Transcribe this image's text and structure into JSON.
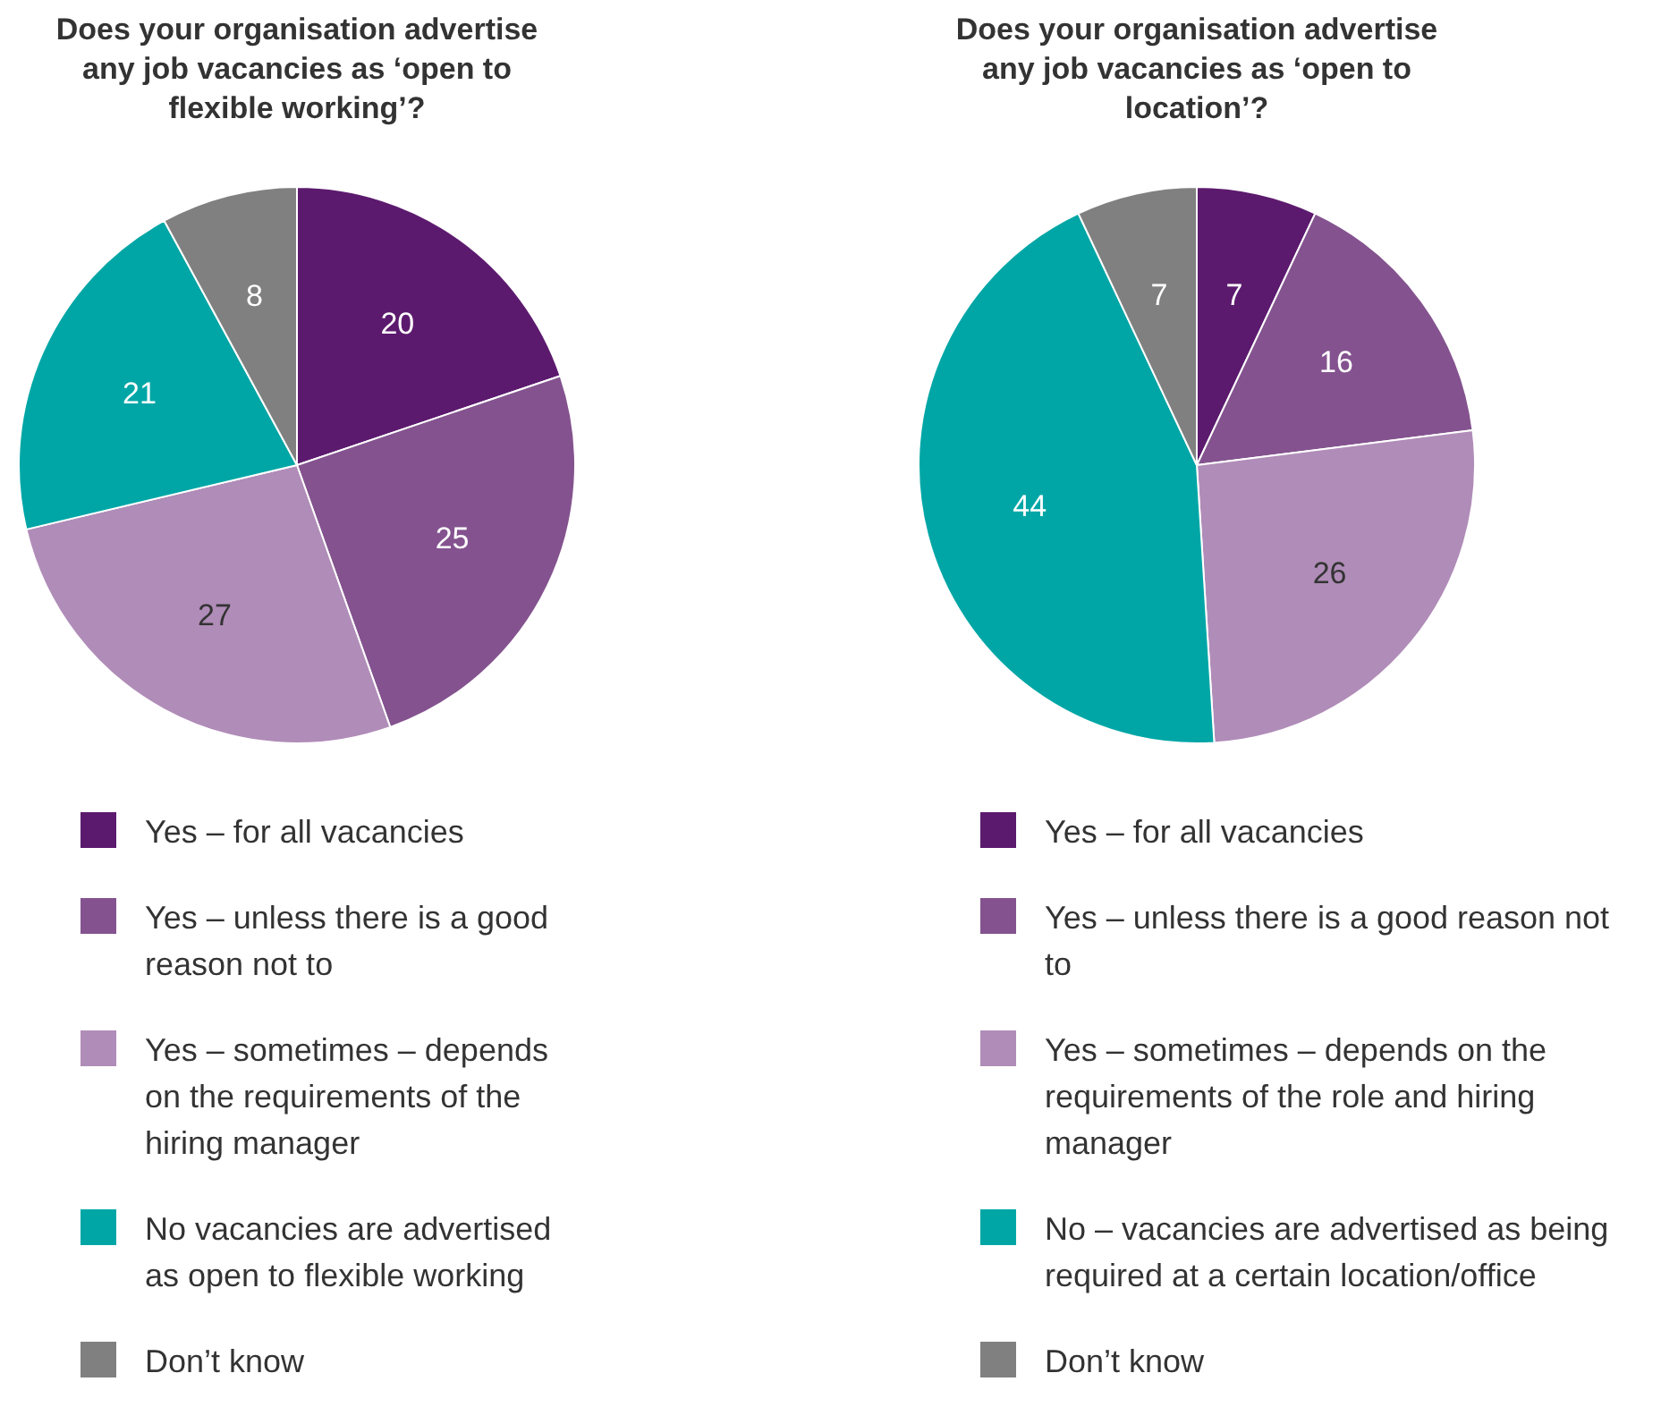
{
  "chart_data": [
    {
      "type": "pie",
      "title": "Does your organisation advertise any job vacancies as ‘open to flexible working’?",
      "categories": [
        "Yes – for all vacancies",
        "Yes – unless there is a good reason not to",
        "Yes – sometimes – depends on the requirements of the hiring manager",
        "No vacancies are advertised as open to flexible working",
        "Don’t know"
      ],
      "values": [
        20,
        25,
        27,
        21,
        8
      ],
      "colors": [
        "#5c1a6e",
        "#84538f",
        "#b08cb8",
        "#00a6a6",
        "#808080"
      ],
      "data_labels": true,
      "legend": "bottom"
    },
    {
      "type": "pie",
      "title": "Does your organisation advertise any job vacancies as ‘open to location’?",
      "categories": [
        "Yes – for all vacancies",
        "Yes – unless there is a good reason not to",
        "Yes – sometimes – depends on the requirements of the role and hiring manager",
        "No – vacancies are advertised as being required at a certain location/office",
        "Don’t know"
      ],
      "values": [
        7,
        16,
        26,
        44,
        7
      ],
      "colors": [
        "#5c1a6e",
        "#84538f",
        "#b08cb8",
        "#00a6a6",
        "#808080"
      ],
      "data_labels": true,
      "legend": "bottom"
    }
  ]
}
